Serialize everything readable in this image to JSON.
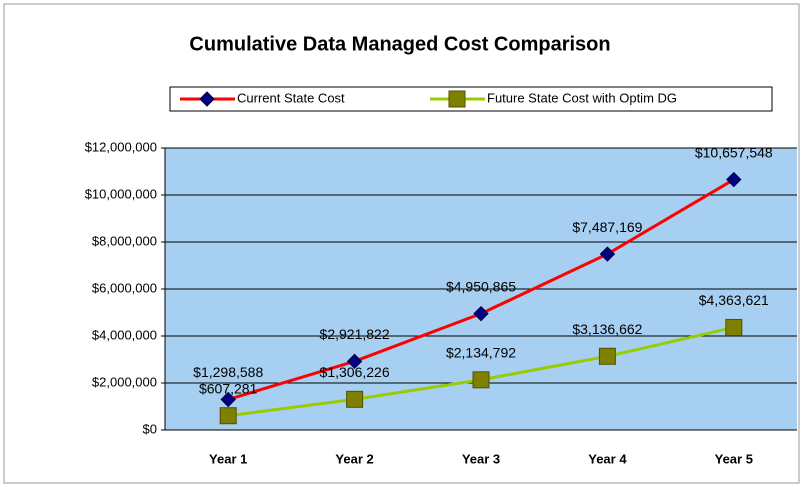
{
  "chart_data": {
    "type": "line",
    "title": "Cumulative Data Managed Cost Comparison",
    "categories": [
      "Year 1",
      "Year 2",
      "Year 3",
      "Year 4",
      "Year 5"
    ],
    "series": [
      {
        "name": "Current State Cost",
        "color": "#ff0000",
        "marker_color": "#000080",
        "marker": "diamond",
        "values": [
          1298588,
          2921822,
          4950865,
          7487169,
          10657548
        ],
        "value_labels": [
          "$1,298,588",
          "$2,921,822",
          "$4,950,865",
          "$7,487,169",
          "$10,657,548"
        ]
      },
      {
        "name": "Future State Cost with Optim DG",
        "color": "#99cc00",
        "marker_color": "#808000",
        "marker": "square",
        "values": [
          607281,
          1306226,
          2134792,
          3136662,
          4363621
        ],
        "value_labels": [
          "$607,281",
          "$1,306,226",
          "$2,134,792",
          "$3,136,662",
          "$4,363,621"
        ]
      }
    ],
    "ylim": [
      0,
      12000000
    ],
    "yticks": [
      {
        "value": 0,
        "label": "$0"
      },
      {
        "value": 2000000,
        "label": "$2,000,000"
      },
      {
        "value": 4000000,
        "label": "$4,000,000"
      },
      {
        "value": 6000000,
        "label": "$6,000,000"
      },
      {
        "value": 8000000,
        "label": "$8,000,000"
      },
      {
        "value": 10000000,
        "label": "$10,000,000"
      },
      {
        "value": 12000000,
        "label": "$12,000,000"
      }
    ],
    "grid": true,
    "plot_background": "#a6cff2",
    "legend": "top"
  }
}
